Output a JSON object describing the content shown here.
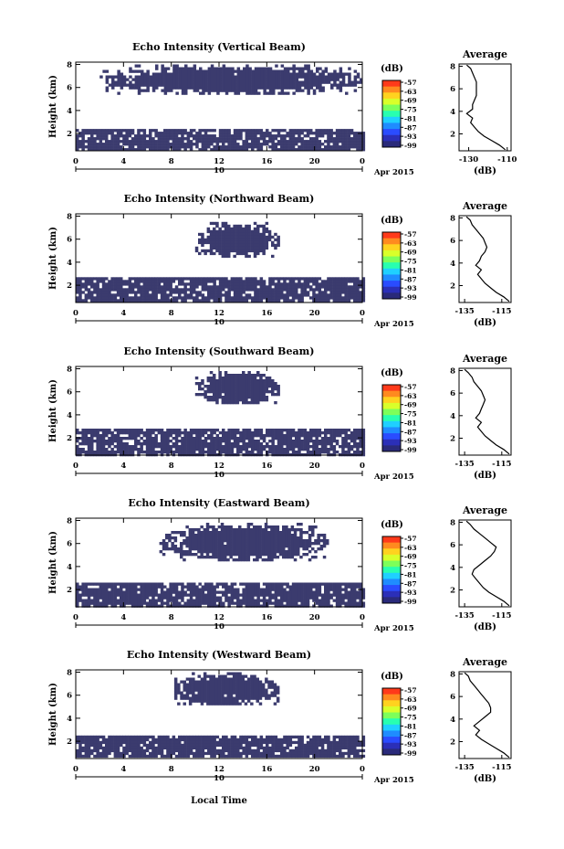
{
  "chart_data": [
    {
      "type": "heatmap",
      "title": "Echo Intensity (Vertical Beam)",
      "ylabel": "Height (km)",
      "xticks": [
        "0",
        "4",
        "8",
        "12",
        "16",
        "20",
        "0"
      ],
      "date_day": "10",
      "date_label": "Apr 2015",
      "yticks": [
        "2",
        "4",
        "6",
        "8"
      ],
      "xlim": [
        0,
        24
      ],
      "ylim": [
        0.5,
        8.2
      ],
      "colorbar": {
        "unit": "(dB)",
        "ticks": [
          "-57",
          "-63",
          "-69",
          "-75",
          "-81",
          "-87",
          "-93",
          "-99"
        ]
      },
      "regions": [
        {
          "name": "lower echo layer",
          "x": [
            0,
            24
          ],
          "y": [
            0.6,
            2.4
          ]
        },
        {
          "name": "upper echo layer",
          "x": [
            2,
            24
          ],
          "y": [
            5.5,
            8.0
          ]
        }
      ],
      "average_profile": {
        "title": "Average",
        "xlabel": "(dB)",
        "xticks": [
          "-130",
          "-110"
        ],
        "xlim": [
          -135,
          -108
        ],
        "yticks": [
          "2",
          "4",
          "6",
          "8"
        ],
        "points": [
          [
            -111,
            0.6
          ],
          [
            -114,
            1.0
          ],
          [
            -118,
            1.4
          ],
          [
            -122,
            1.8
          ],
          [
            -125,
            2.2
          ],
          [
            -127,
            2.6
          ],
          [
            -129,
            3.0
          ],
          [
            -128,
            3.4
          ],
          [
            -131,
            3.8
          ],
          [
            -128,
            4.2
          ],
          [
            -128,
            4.6
          ],
          [
            -127,
            5.0
          ],
          [
            -126,
            5.4
          ],
          [
            -126,
            5.8
          ],
          [
            -126,
            6.2
          ],
          [
            -126,
            6.6
          ],
          [
            -127,
            7.0
          ],
          [
            -128,
            7.4
          ],
          [
            -129,
            7.8
          ],
          [
            -131,
            8.1
          ]
        ]
      }
    },
    {
      "type": "heatmap",
      "title": "Echo Intensity (Northward Beam)",
      "ylabel": "Height (km)",
      "xticks": [
        "0",
        "4",
        "8",
        "12",
        "16",
        "20",
        "0"
      ],
      "date_day": "10",
      "date_label": "Apr 2015",
      "yticks": [
        "2",
        "4",
        "6",
        "8"
      ],
      "xlim": [
        0,
        24
      ],
      "ylim": [
        0.5,
        8.2
      ],
      "colorbar": {
        "unit": "(dB)",
        "ticks": [
          "-57",
          "-63",
          "-69",
          "-75",
          "-81",
          "-87",
          "-93",
          "-99"
        ]
      },
      "regions": [
        {
          "name": "lower echo layer",
          "x": [
            0,
            24
          ],
          "y": [
            0.6,
            2.7
          ]
        },
        {
          "name": "upper echo layer",
          "x": [
            10,
            17
          ],
          "y": [
            4.5,
            7.5
          ]
        }
      ],
      "average_profile": {
        "title": "Average",
        "xlabel": "(dB)",
        "xticks": [
          "-135",
          "-115"
        ],
        "xlim": [
          -138,
          -110
        ],
        "yticks": [
          "2",
          "4",
          "6",
          "8"
        ],
        "points": [
          [
            -111,
            0.6
          ],
          [
            -114,
            1.0
          ],
          [
            -118,
            1.4
          ],
          [
            -121,
            1.8
          ],
          [
            -124,
            2.2
          ],
          [
            -126,
            2.6
          ],
          [
            -128,
            3.0
          ],
          [
            -126,
            3.4
          ],
          [
            -129,
            3.8
          ],
          [
            -127,
            4.2
          ],
          [
            -126,
            4.6
          ],
          [
            -124,
            5.0
          ],
          [
            -123,
            5.4
          ],
          [
            -124,
            5.8
          ],
          [
            -125,
            6.2
          ],
          [
            -127,
            6.6
          ],
          [
            -129,
            7.0
          ],
          [
            -131,
            7.4
          ],
          [
            -132,
            7.8
          ],
          [
            -134,
            8.1
          ]
        ]
      }
    },
    {
      "type": "heatmap",
      "title": "Echo Intensity (Southward Beam)",
      "ylabel": "Height (km)",
      "xticks": [
        "0",
        "4",
        "8",
        "12",
        "16",
        "20",
        "0"
      ],
      "date_day": "10",
      "date_label": "Apr 2015",
      "yticks": [
        "2",
        "4",
        "6",
        "8"
      ],
      "xlim": [
        0,
        24
      ],
      "ylim": [
        0.5,
        8.2
      ],
      "colorbar": {
        "unit": "(dB)",
        "ticks": [
          "-57",
          "-63",
          "-69",
          "-75",
          "-81",
          "-87",
          "-93",
          "-99"
        ]
      },
      "regions": [
        {
          "name": "lower echo layer",
          "x": [
            0,
            24
          ],
          "y": [
            0.6,
            2.8
          ]
        },
        {
          "name": "upper echo layer",
          "x": [
            10,
            17
          ],
          "y": [
            5.0,
            7.8
          ]
        }
      ],
      "average_profile": {
        "title": "Average",
        "xlabel": "(dB)",
        "xticks": [
          "-135",
          "-115"
        ],
        "xlim": [
          -138,
          -110
        ],
        "yticks": [
          "2",
          "4",
          "6",
          "8"
        ],
        "points": [
          [
            -111,
            0.6
          ],
          [
            -114,
            1.0
          ],
          [
            -118,
            1.4
          ],
          [
            -121,
            1.8
          ],
          [
            -124,
            2.2
          ],
          [
            -126,
            2.6
          ],
          [
            -128,
            3.0
          ],
          [
            -126,
            3.4
          ],
          [
            -129,
            3.8
          ],
          [
            -127,
            4.2
          ],
          [
            -126,
            4.6
          ],
          [
            -125,
            5.0
          ],
          [
            -124,
            5.4
          ],
          [
            -125,
            5.8
          ],
          [
            -126,
            6.2
          ],
          [
            -128,
            6.6
          ],
          [
            -130,
            7.0
          ],
          [
            -131,
            7.4
          ],
          [
            -133,
            7.8
          ],
          [
            -135,
            8.1
          ]
        ]
      }
    },
    {
      "type": "heatmap",
      "title": "Echo Intensity (Eastward Beam)",
      "ylabel": "Height (km)",
      "xticks": [
        "0",
        "4",
        "8",
        "12",
        "16",
        "20",
        "0"
      ],
      "date_day": "10",
      "date_label": "Apr 2015",
      "yticks": [
        "2",
        "4",
        "6",
        "8"
      ],
      "xlim": [
        0,
        24
      ],
      "ylim": [
        0.5,
        8.2
      ],
      "colorbar": {
        "unit": "(dB)",
        "ticks": [
          "-57",
          "-63",
          "-69",
          "-75",
          "-81",
          "-87",
          "-93",
          "-99"
        ]
      },
      "regions": [
        {
          "name": "lower echo layer",
          "x": [
            0,
            24
          ],
          "y": [
            0.6,
            2.6
          ]
        },
        {
          "name": "upper echo layer",
          "x": [
            7,
            21
          ],
          "y": [
            4.6,
            7.8
          ]
        }
      ],
      "average_profile": {
        "title": "Average",
        "xlabel": "(dB)",
        "xticks": [
          "-135",
          "-115"
        ],
        "xlim": [
          -138,
          -110
        ],
        "yticks": [
          "2",
          "4",
          "6",
          "8"
        ],
        "points": [
          [
            -111,
            0.6
          ],
          [
            -114,
            1.0
          ],
          [
            -118,
            1.4
          ],
          [
            -122,
            1.8
          ],
          [
            -125,
            2.2
          ],
          [
            -127,
            2.6
          ],
          [
            -129,
            3.0
          ],
          [
            -131,
            3.4
          ],
          [
            -130,
            3.8
          ],
          [
            -127,
            4.2
          ],
          [
            -124,
            4.6
          ],
          [
            -121,
            5.0
          ],
          [
            -119,
            5.4
          ],
          [
            -118,
            5.8
          ],
          [
            -121,
            6.2
          ],
          [
            -124,
            6.6
          ],
          [
            -127,
            7.0
          ],
          [
            -130,
            7.4
          ],
          [
            -132,
            7.8
          ],
          [
            -134,
            8.1
          ]
        ]
      }
    },
    {
      "type": "heatmap",
      "title": "Echo Intensity (Westward Beam)",
      "ylabel": "Height (km)",
      "xticks": [
        "0",
        "4",
        "8",
        "12",
        "16",
        "20",
        "0"
      ],
      "date_day": "10",
      "date_label": "Apr 2015",
      "yticks": [
        "2",
        "4",
        "6",
        "8"
      ],
      "xlim": [
        0,
        24
      ],
      "ylim": [
        0.5,
        8.2
      ],
      "colorbar": {
        "unit": "(dB)",
        "ticks": [
          "-57",
          "-63",
          "-69",
          "-75",
          "-81",
          "-87",
          "-93",
          "-99"
        ]
      },
      "regions": [
        {
          "name": "lower echo layer",
          "x": [
            0,
            24
          ],
          "y": [
            0.6,
            2.5
          ]
        },
        {
          "name": "upper echo layer",
          "x": [
            8,
            17
          ],
          "y": [
            5.2,
            8.0
          ]
        }
      ],
      "average_profile": {
        "title": "Average",
        "xlabel": "(dB)",
        "xticks": [
          "-135",
          "-115"
        ],
        "xlim": [
          -138,
          -110
        ],
        "yticks": [
          "2",
          "4",
          "6",
          "8"
        ],
        "points": [
          [
            -111,
            0.6
          ],
          [
            -114,
            1.0
          ],
          [
            -118,
            1.4
          ],
          [
            -122,
            1.8
          ],
          [
            -126,
            2.2
          ],
          [
            -129,
            2.6
          ],
          [
            -127,
            3.0
          ],
          [
            -130,
            3.4
          ],
          [
            -127,
            3.8
          ],
          [
            -124,
            4.2
          ],
          [
            -121,
            4.6
          ],
          [
            -121,
            5.0
          ],
          [
            -122,
            5.4
          ],
          [
            -124,
            5.8
          ],
          [
            -126,
            6.2
          ],
          [
            -128,
            6.6
          ],
          [
            -130,
            7.0
          ],
          [
            -132,
            7.4
          ],
          [
            -133,
            7.8
          ],
          [
            -135,
            8.1
          ]
        ]
      }
    }
  ],
  "footer": {
    "xlabel": "Local Time"
  },
  "colors": {
    "echo": "#3b3b6e",
    "axis": "#000000"
  }
}
